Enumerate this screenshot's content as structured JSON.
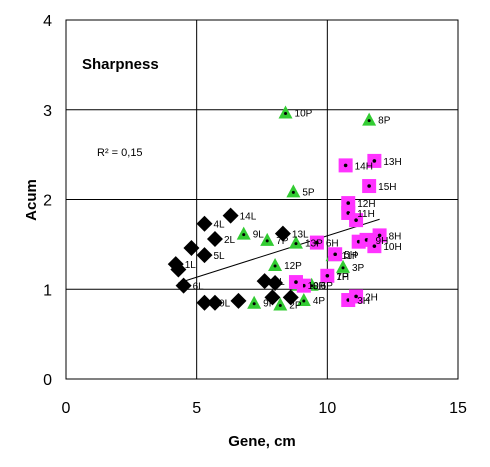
{
  "chart_data": {
    "type": "scatter",
    "title": "Sharpness",
    "annotation": "R² = 0,15",
    "xlabel": "Gene, cm",
    "ylabel": "Acum",
    "xlim": [
      0,
      15
    ],
    "ylim": [
      0,
      4
    ],
    "xticks": [
      "0",
      "5",
      "10",
      "15"
    ],
    "yticks": [
      "0",
      "1",
      "2",
      "3",
      "4"
    ],
    "grid": true,
    "legend": "none",
    "trendline": {
      "type": "linear",
      "from": [
        4.3,
        1.07
      ],
      "to": [
        12.0,
        1.78
      ]
    },
    "series": [
      {
        "marker": "diamond",
        "color": "#000000",
        "points": [
          {
            "x": 4.2,
            "y": 1.28,
            "label": "1L"
          },
          {
            "x": 4.3,
            "y": 1.22,
            "label": ""
          },
          {
            "x": 4.5,
            "y": 1.04,
            "label": "6L"
          },
          {
            "x": 4.8,
            "y": 1.46,
            "label": ""
          },
          {
            "x": 5.3,
            "y": 1.73,
            "label": "4L"
          },
          {
            "x": 5.3,
            "y": 1.38,
            "label": "5L"
          },
          {
            "x": 5.7,
            "y": 1.56,
            "label": "2L"
          },
          {
            "x": 6.3,
            "y": 1.82,
            "label": "14L"
          },
          {
            "x": 5.3,
            "y": 0.85,
            "label": "10L"
          },
          {
            "x": 5.7,
            "y": 0.85,
            "label": ""
          },
          {
            "x": 6.6,
            "y": 0.87,
            "label": ""
          },
          {
            "x": 7.6,
            "y": 1.09,
            "label": "9L"
          },
          {
            "x": 8.0,
            "y": 1.07,
            "label": ""
          },
          {
            "x": 8.3,
            "y": 1.62,
            "label": "13L"
          },
          {
            "x": 7.9,
            "y": 0.91,
            "label": ""
          },
          {
            "x": 8.6,
            "y": 0.91,
            "label": ""
          }
        ]
      },
      {
        "marker": "triangle",
        "color": "#33cc33",
        "points": [
          {
            "x": 6.8,
            "y": 1.62,
            "label": "9L"
          },
          {
            "x": 7.7,
            "y": 1.55,
            "label": "7P"
          },
          {
            "x": 8.8,
            "y": 1.52,
            "label": "13P"
          },
          {
            "x": 8.0,
            "y": 1.27,
            "label": "12P"
          },
          {
            "x": 8.2,
            "y": 0.83,
            "label": "2P"
          },
          {
            "x": 7.2,
            "y": 0.85,
            "label": "9P"
          },
          {
            "x": 8.9,
            "y": 1.05,
            "label": "10P"
          },
          {
            "x": 9.1,
            "y": 0.88,
            "label": "4P"
          },
          {
            "x": 9.4,
            "y": 1.05,
            "label": "6P"
          },
          {
            "x": 8.7,
            "y": 2.09,
            "label": "5P"
          },
          {
            "x": 8.4,
            "y": 2.97,
            "label": "10P"
          },
          {
            "x": 11.6,
            "y": 2.89,
            "label": "8P"
          },
          {
            "x": 10.2,
            "y": 1.38,
            "label": "11P"
          },
          {
            "x": 10.6,
            "y": 1.25,
            "label": "3P"
          },
          {
            "x": 10.0,
            "y": 1.15,
            "label": "1P"
          }
        ]
      },
      {
        "marker": "square",
        "color": "#ff33ff",
        "points": [
          {
            "x": 10.7,
            "y": 2.38,
            "label": "14H"
          },
          {
            "x": 11.8,
            "y": 2.43,
            "label": "13H"
          },
          {
            "x": 11.6,
            "y": 2.15,
            "label": "15H"
          },
          {
            "x": 10.8,
            "y": 1.96,
            "label": "12H"
          },
          {
            "x": 10.8,
            "y": 1.85,
            "label": "11H"
          },
          {
            "x": 11.1,
            "y": 1.77,
            "label": ""
          },
          {
            "x": 9.6,
            "y": 1.52,
            "label": "6H"
          },
          {
            "x": 10.3,
            "y": 1.39,
            "label": "5H"
          },
          {
            "x": 11.2,
            "y": 1.53,
            "label": ""
          },
          {
            "x": 11.5,
            "y": 1.55,
            "label": "9H"
          },
          {
            "x": 12.0,
            "y": 1.6,
            "label": "8H"
          },
          {
            "x": 11.8,
            "y": 1.48,
            "label": "10H"
          },
          {
            "x": 9.1,
            "y": 1.04,
            "label": "8H"
          },
          {
            "x": 10.0,
            "y": 1.15,
            "label": "7H"
          },
          {
            "x": 10.8,
            "y": 0.88,
            "label": "3H"
          },
          {
            "x": 11.1,
            "y": 0.92,
            "label": "2H"
          },
          {
            "x": 8.8,
            "y": 1.08,
            "label": ""
          }
        ]
      }
    ]
  }
}
